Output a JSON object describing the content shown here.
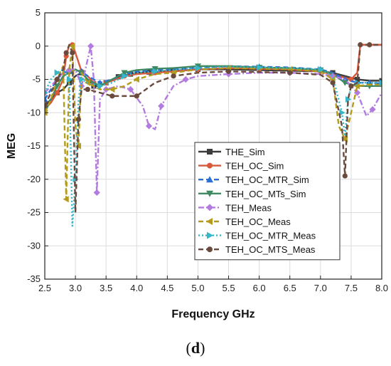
{
  "panel": {
    "open": "(",
    "letter": "d",
    "close": ")"
  },
  "chart_data": {
    "type": "line",
    "title": "",
    "xlabel": "Frequency GHz",
    "ylabel": "MEG",
    "xlim": [
      2.5,
      8.0
    ],
    "ylim": [
      -35,
      5
    ],
    "xticks": [
      "2.5",
      "3.0",
      "3.5",
      "4.0",
      "4.5",
      "5.0",
      "5.5",
      "6.0",
      "6.5",
      "7.0",
      "7.5",
      "8.0"
    ],
    "yticks": [
      "5",
      "0",
      "-5",
      "-10",
      "-15",
      "-20",
      "-25",
      "-30",
      "-35"
    ],
    "grid": true,
    "legend_position": "center-right",
    "series": [
      {
        "name": "THE_Sim",
        "color": "#3c3c3c",
        "marker": "square",
        "dash": "solid",
        "x": [
          2.5,
          2.6,
          2.7,
          2.8,
          2.9,
          3.0,
          3.1,
          3.2,
          3.3,
          3.4,
          3.5,
          3.6,
          3.7,
          3.8,
          3.9,
          4.0,
          4.2,
          4.4,
          4.6,
          4.8,
          5.0,
          5.2,
          5.5,
          6.0,
          6.5,
          7.0,
          7.2,
          7.4,
          7.6,
          7.8,
          8.0
        ],
        "y": [
          -9.0,
          -8.0,
          -7.0,
          -6.5,
          -5.5,
          -4.5,
          -4.0,
          -5.0,
          -6.0,
          -6.0,
          -5.5,
          -5.0,
          -4.6,
          -4.4,
          -4.2,
          -4.0,
          -3.9,
          -3.8,
          -3.7,
          -3.6,
          -3.5,
          -3.5,
          -3.5,
          -3.6,
          -3.7,
          -3.8,
          -4.0,
          -4.5,
          -5.0,
          -5.2,
          -5.2
        ]
      },
      {
        "name": "TEH_OC_Sim",
        "color": "#d9593a",
        "marker": "circle",
        "dash": "solid",
        "x": [
          2.5,
          2.6,
          2.7,
          2.8,
          2.85,
          2.9,
          2.95,
          3.0,
          3.1,
          3.2,
          3.3,
          3.4,
          3.5,
          3.6,
          3.8,
          4.0,
          4.3,
          4.6,
          5.0,
          5.5,
          6.0,
          6.5,
          7.0,
          7.3,
          7.5,
          7.6,
          7.65,
          7.7,
          7.8,
          8.0
        ],
        "y": [
          -9.5,
          -8.5,
          -7.0,
          -5.0,
          -1.5,
          0.2,
          0.2,
          -1.0,
          -3.8,
          -4.5,
          -5.5,
          -6.0,
          -5.5,
          -5.2,
          -4.5,
          -4.2,
          -4.0,
          -3.8,
          -3.5,
          -3.3,
          -3.4,
          -3.5,
          -3.8,
          -4.5,
          -5.0,
          -4.0,
          0.2,
          0.2,
          0.2,
          0.2
        ]
      },
      {
        "name": "TEH_OC_MTR_Sim",
        "color": "#2b6fd6",
        "marker": "triangle-up",
        "dash": "dash",
        "x": [
          2.5,
          2.6,
          2.7,
          2.8,
          2.9,
          3.0,
          3.1,
          3.2,
          3.4,
          3.6,
          3.8,
          4.0,
          4.3,
          4.6,
          5.0,
          5.5,
          6.0,
          6.5,
          7.0,
          7.2,
          7.4,
          7.6,
          7.8,
          8.0
        ],
        "y": [
          -8.0,
          -6.5,
          -5.0,
          -4.0,
          -3.8,
          -3.6,
          -3.8,
          -4.5,
          -5.5,
          -5.0,
          -4.2,
          -3.8,
          -3.6,
          -3.5,
          -3.2,
          -3.0,
          -3.1,
          -3.2,
          -3.5,
          -4.0,
          -5.0,
          -5.5,
          -5.5,
          -5.6
        ]
      },
      {
        "name": "TEH_OC_MTs_Sim",
        "color": "#3f8a63",
        "marker": "triangle-down",
        "dash": "solid",
        "x": [
          2.5,
          2.6,
          2.7,
          2.8,
          2.9,
          3.0,
          3.1,
          3.2,
          3.4,
          3.6,
          3.8,
          4.0,
          4.3,
          4.6,
          5.0,
          5.5,
          6.0,
          6.5,
          7.0,
          7.2,
          7.4,
          7.6,
          7.8,
          8.0
        ],
        "y": [
          -10.0,
          -8.0,
          -6.0,
          -4.5,
          -4.0,
          -3.5,
          -4.0,
          -5.0,
          -6.0,
          -5.0,
          -4.0,
          -3.6,
          -3.4,
          -3.3,
          -3.0,
          -3.0,
          -3.2,
          -3.3,
          -3.6,
          -4.2,
          -5.5,
          -6.0,
          -6.0,
          -6.0
        ]
      },
      {
        "name": "TEH_Meas",
        "color": "#b37be0",
        "marker": "diamond",
        "dash": "dashdot",
        "x": [
          2.5,
          2.6,
          2.7,
          2.8,
          2.9,
          3.0,
          3.1,
          3.2,
          3.25,
          3.3,
          3.35,
          3.4,
          3.5,
          3.7,
          3.9,
          4.1,
          4.2,
          4.3,
          4.4,
          4.6,
          4.8,
          5.0,
          5.5,
          6.0,
          6.5,
          7.0,
          7.2,
          7.4,
          7.6,
          7.75,
          7.85,
          8.0
        ],
        "y": [
          -7.0,
          -6.0,
          -5.0,
          -4.0,
          -3.6,
          -3.5,
          -6.0,
          -2.0,
          0.0,
          -5.0,
          -22.0,
          -8.0,
          -6.5,
          -6.0,
          -6.5,
          -9.0,
          -12.0,
          -12.5,
          -9.0,
          -6.0,
          -5.0,
          -4.5,
          -4.2,
          -4.0,
          -4.0,
          -4.2,
          -4.5,
          -5.0,
          -7.0,
          -10.5,
          -9.5,
          -7.0
        ]
      },
      {
        "name": "TEH_OC_Meas",
        "color": "#b59b1c",
        "marker": "triangle-left",
        "dash": "dash",
        "x": [
          2.5,
          2.6,
          2.7,
          2.8,
          2.85,
          2.9,
          2.95,
          3.0,
          3.05,
          3.1,
          3.2,
          3.4,
          3.6,
          3.8,
          4.0,
          4.3,
          4.6,
          5.0,
          5.5,
          6.0,
          6.5,
          7.0,
          7.2,
          7.3,
          7.4,
          7.5,
          7.6,
          7.8,
          8.0
        ],
        "y": [
          -10.0,
          -8.0,
          -5.0,
          -3.0,
          -23.0,
          -3.5,
          0.0,
          -12.0,
          -15.0,
          -4.0,
          -5.5,
          -6.5,
          -6.5,
          -6.0,
          -5.0,
          -4.2,
          -4.0,
          -3.5,
          -3.3,
          -3.4,
          -3.5,
          -3.8,
          -5.0,
          -12.0,
          -14.0,
          -10.0,
          -6.0,
          -5.8,
          -5.8
        ]
      },
      {
        "name": "TEH_OC_MTR_Meas",
        "color": "#35b6c9",
        "marker": "triangle-right",
        "dash": "dot",
        "x": [
          2.5,
          2.6,
          2.7,
          2.8,
          2.9,
          2.95,
          3.0,
          3.05,
          3.1,
          3.2,
          3.4,
          3.6,
          3.8,
          4.0,
          4.3,
          4.6,
          5.0,
          5.5,
          6.0,
          6.5,
          7.0,
          7.2,
          7.35,
          7.4,
          7.45,
          7.5,
          7.6,
          7.8,
          8.0
        ],
        "y": [
          -7.0,
          -5.0,
          -4.0,
          -3.5,
          -5.0,
          -27.0,
          -20.0,
          -8.0,
          -5.0,
          -5.5,
          -6.0,
          -5.5,
          -4.5,
          -4.0,
          -3.8,
          -3.6,
          -3.3,
          -3.1,
          -3.2,
          -3.3,
          -3.5,
          -4.5,
          -10.0,
          -13.5,
          -8.0,
          -6.0,
          -5.5,
          -5.5,
          -5.5
        ]
      },
      {
        "name": "TEH_OC_MTS_Meas",
        "color": "#6b4a3e",
        "marker": "circle",
        "dash": "dash",
        "x": [
          2.5,
          2.6,
          2.7,
          2.8,
          2.85,
          2.9,
          2.95,
          3.0,
          3.05,
          3.1,
          3.2,
          3.4,
          3.6,
          3.8,
          4.0,
          4.3,
          4.6,
          5.0,
          5.5,
          6.0,
          6.5,
          7.0,
          7.2,
          7.35,
          7.4,
          7.45,
          7.5,
          7.6,
          7.65,
          7.7,
          7.8,
          8.0
        ],
        "y": [
          -9.0,
          -7.0,
          -5.0,
          -3.5,
          -1.0,
          0.2,
          -1.0,
          -25.0,
          -11.0,
          -6.5,
          -6.5,
          -7.0,
          -7.5,
          -7.5,
          -7.5,
          -5.5,
          -4.5,
          -4.0,
          -3.8,
          -3.9,
          -4.0,
          -4.3,
          -5.5,
          -12.0,
          -19.5,
          -8.0,
          -6.0,
          -5.5,
          0.2,
          0.2,
          0.2,
          0.2
        ]
      }
    ]
  }
}
